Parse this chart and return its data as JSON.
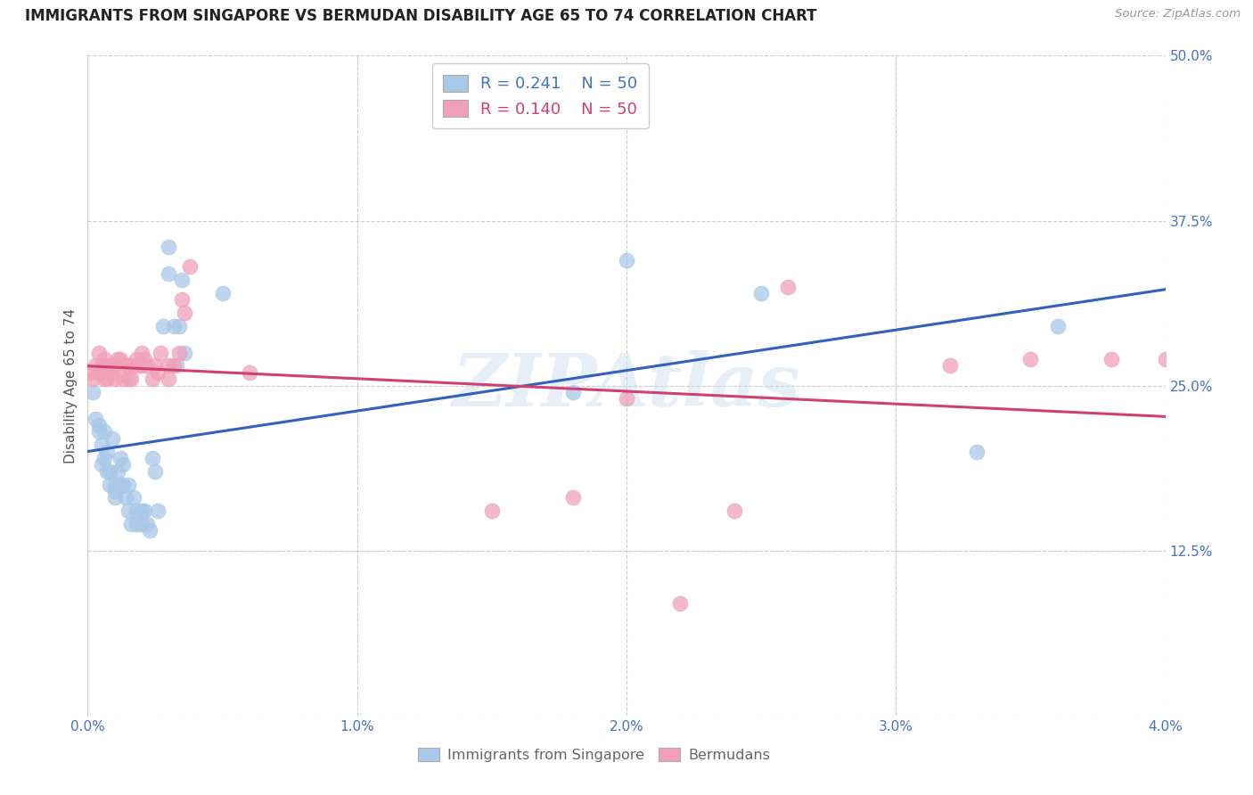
{
  "title": "IMMIGRANTS FROM SINGAPORE VS BERMUDAN DISABILITY AGE 65 TO 74 CORRELATION CHART",
  "source": "Source: ZipAtlas.com",
  "ylabel": "Disability Age 65 to 74",
  "xlim": [
    0.0,
    0.04
  ],
  "ylim": [
    0.0,
    0.5
  ],
  "xticks": [
    0.0,
    0.01,
    0.02,
    0.03,
    0.04
  ],
  "xtick_labels": [
    "0.0%",
    "1.0%",
    "2.0%",
    "3.0%",
    "4.0%"
  ],
  "yticks": [
    0.0,
    0.125,
    0.25,
    0.375,
    0.5
  ],
  "ytick_labels": [
    "",
    "12.5%",
    "25.0%",
    "37.5%",
    "50.0%"
  ],
  "legend_r_blue": "R = 0.241",
  "legend_n_blue": "N = 50",
  "legend_r_pink": "R = 0.140",
  "legend_n_pink": "N = 50",
  "watermark": "ZIPAtlas",
  "blue_color": "#a8c8e8",
  "pink_color": "#f0a0b8",
  "blue_line_color": "#3060c0",
  "pink_line_color": "#d04070",
  "blue_x": [
    0.0002,
    0.0003,
    0.0004,
    0.0004,
    0.0005,
    0.0005,
    0.0006,
    0.0006,
    0.0007,
    0.0007,
    0.0008,
    0.0008,
    0.0009,
    0.001,
    0.001,
    0.001,
    0.0011,
    0.0012,
    0.0012,
    0.0013,
    0.0013,
    0.0014,
    0.0015,
    0.0015,
    0.0016,
    0.0017,
    0.0018,
    0.0018,
    0.002,
    0.002,
    0.0021,
    0.0022,
    0.0023,
    0.0024,
    0.0025,
    0.0026,
    0.0028,
    0.003,
    0.003,
    0.0032,
    0.0033,
    0.0034,
    0.0035,
    0.0036,
    0.005,
    0.018,
    0.02,
    0.025,
    0.033,
    0.036
  ],
  "blue_y": [
    0.245,
    0.225,
    0.22,
    0.215,
    0.205,
    0.19,
    0.215,
    0.195,
    0.2,
    0.185,
    0.185,
    0.175,
    0.21,
    0.175,
    0.17,
    0.165,
    0.185,
    0.195,
    0.175,
    0.19,
    0.175,
    0.165,
    0.175,
    0.155,
    0.145,
    0.165,
    0.155,
    0.145,
    0.155,
    0.145,
    0.155,
    0.145,
    0.14,
    0.195,
    0.185,
    0.155,
    0.295,
    0.355,
    0.335,
    0.295,
    0.265,
    0.295,
    0.33,
    0.275,
    0.32,
    0.245,
    0.345,
    0.32,
    0.2,
    0.295
  ],
  "pink_x": [
    0.0001,
    0.0002,
    0.0003,
    0.0004,
    0.0004,
    0.0005,
    0.0006,
    0.0006,
    0.0007,
    0.0007,
    0.0008,
    0.0009,
    0.001,
    0.001,
    0.0011,
    0.0012,
    0.0013,
    0.0014,
    0.0015,
    0.0015,
    0.0016,
    0.0017,
    0.0018,
    0.0019,
    0.002,
    0.002,
    0.0021,
    0.0022,
    0.0024,
    0.0025,
    0.0026,
    0.0027,
    0.003,
    0.003,
    0.0032,
    0.0034,
    0.0035,
    0.0036,
    0.0038,
    0.006,
    0.015,
    0.018,
    0.02,
    0.022,
    0.024,
    0.026,
    0.032,
    0.035,
    0.038,
    0.04
  ],
  "pink_y": [
    0.26,
    0.255,
    0.265,
    0.26,
    0.275,
    0.265,
    0.27,
    0.255,
    0.255,
    0.265,
    0.265,
    0.26,
    0.255,
    0.265,
    0.27,
    0.27,
    0.255,
    0.265,
    0.265,
    0.255,
    0.255,
    0.265,
    0.27,
    0.265,
    0.275,
    0.265,
    0.27,
    0.265,
    0.255,
    0.265,
    0.26,
    0.275,
    0.255,
    0.265,
    0.265,
    0.275,
    0.315,
    0.305,
    0.34,
    0.26,
    0.155,
    0.165,
    0.24,
    0.085,
    0.155,
    0.325,
    0.265,
    0.27,
    0.27,
    0.27
  ]
}
